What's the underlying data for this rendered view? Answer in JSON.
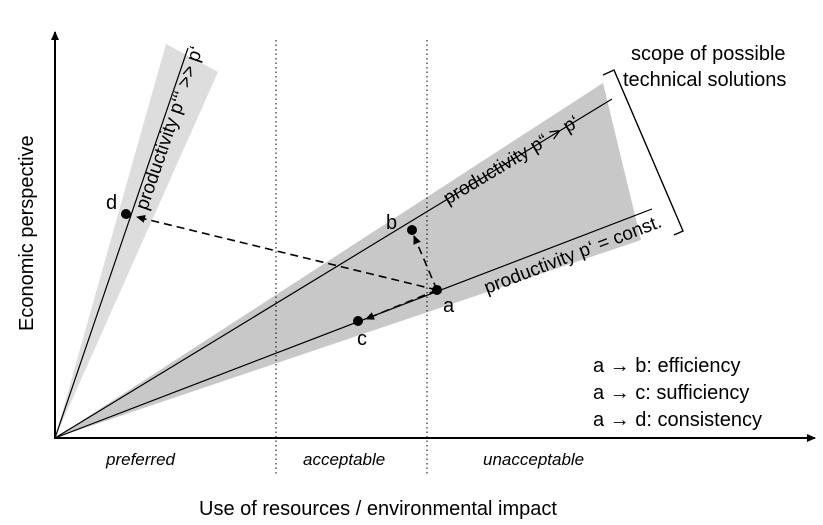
{
  "axes": {
    "y_label": "Economic perspective",
    "x_label": "Use of resources / environmental impact"
  },
  "regions": {
    "preferred": "preferred",
    "acceptable": "acceptable",
    "unacceptable": "unacceptable"
  },
  "rays": {
    "constant": "productivity p‘ = const.",
    "higher": "productivity p“ > p‘",
    "much_higher": "productivity p‘‘‘ >> p‘"
  },
  "scope_label": {
    "line1": "scope of possible",
    "line2": "technical solutions"
  },
  "points": {
    "a": "a",
    "b": "b",
    "c": "c",
    "d": "d"
  },
  "legend": [
    "a → b: efficiency",
    "a → c: sufficiency",
    "a → d: consistency"
  ],
  "colors": {
    "wedge_fill": "#c8c8c8",
    "narrow_wedge_fill": "#dddddd",
    "line": "#000000"
  }
}
